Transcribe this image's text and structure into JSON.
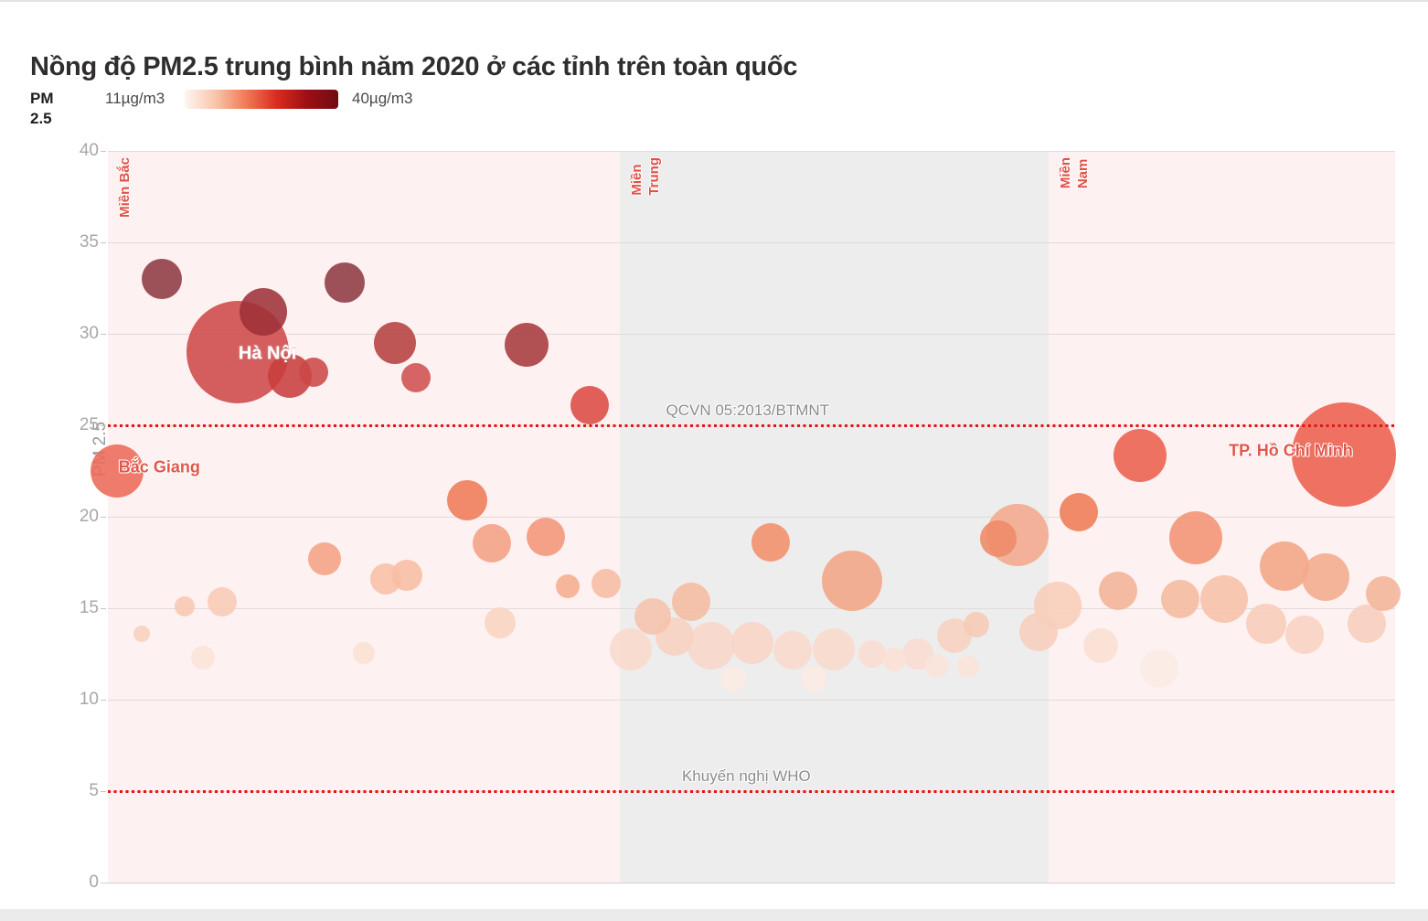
{
  "title": "Nồng độ PM2.5 trung bình năm 2020 ở các tỉnh trên toàn quốc",
  "legend": {
    "label": "PM 2.5",
    "min_label": "11µg/m3",
    "max_label": "40µg/m3",
    "gradient_stops": [
      "#fdf6f2",
      "#f9c5ab",
      "#f07a55",
      "#d92b20",
      "#9c0f14",
      "#700c13"
    ]
  },
  "colors": {
    "accent_red": "#e01812",
    "region_label": "#e05148",
    "pink_band": "#fdf1f1",
    "gray_band": "#ededed",
    "grid": "#e2dbdb",
    "tick_text": "#a9a6a6",
    "ref_text": "#8b8b8b",
    "title_text": "#302d2d",
    "footer_bar": "#ebebeb"
  },
  "chart_data": {
    "type": "bubble",
    "title": "Nồng độ PM2.5 trung bình năm 2020 ở các tỉnh trên toàn quốc",
    "ylabel": "PM 2.5",
    "unit": "µg/m3",
    "ylim": [
      0,
      40
    ],
    "yticks": [
      0,
      5,
      10,
      15,
      20,
      25,
      30,
      35,
      40
    ],
    "grid": true,
    "colorscale": {
      "min_value": 11,
      "max_value": 40
    },
    "regions": [
      {
        "label_lines": "Miền Bắc",
        "x0": 0.0,
        "x1": 0.398,
        "bg": "#fdf1f1"
      },
      {
        "label_lines": "Miền\nTrung",
        "x0": 0.398,
        "x1": 0.731,
        "bg": "#ededed"
      },
      {
        "label_lines": "Miền\nNam",
        "x0": 0.731,
        "x1": 1.0,
        "bg": "#fdf1f1"
      }
    ],
    "reference_lines": [
      {
        "label": "QCVN 05:2013/BTMNT",
        "value": 25,
        "label_x": 0.497
      },
      {
        "label": "Khuyến nghị WHO",
        "value": 5,
        "label_x": 0.496
      }
    ],
    "point_labels": [
      {
        "text": "Hà Nội",
        "x": 0.124,
        "pm25": 28.9,
        "style": "on-bubble"
      },
      {
        "text": "Bắc Giang",
        "x": 0.04,
        "pm25": 22.7,
        "style": "callout"
      },
      {
        "text": "TP. Hồ Chí Minh",
        "x": 0.919,
        "pm25": 23.6,
        "style": "callout"
      }
    ],
    "points": [
      {
        "region": "Miền Bắc",
        "x": 0.042,
        "pm25": 33.0,
        "r": 22,
        "color": "#8e3a43"
      },
      {
        "region": "Miền Bắc",
        "x": 0.184,
        "pm25": 32.8,
        "r": 22,
        "color": "#8e3a43"
      },
      {
        "region": "Miền Bắc",
        "x": 0.121,
        "pm25": 31.2,
        "r": 26,
        "color": "#9e3138"
      },
      {
        "region": "Miền Bắc",
        "name": "Hà Nội",
        "x": 0.101,
        "pm25": 29.0,
        "r": 56,
        "color": "#ce4949"
      },
      {
        "region": "Miền Bắc",
        "x": 0.141,
        "pm25": 27.7,
        "r": 24,
        "color": "#c83e3e"
      },
      {
        "region": "Miền Bắc",
        "x": 0.16,
        "pm25": 27.9,
        "r": 16,
        "color": "#cc4848"
      },
      {
        "region": "Miền Bắc",
        "x": 0.223,
        "pm25": 29.5,
        "r": 23,
        "color": "#b54040"
      },
      {
        "region": "Miền Bắc",
        "x": 0.239,
        "pm25": 27.6,
        "r": 16,
        "color": "#d15050"
      },
      {
        "region": "Miền Bắc",
        "x": 0.325,
        "pm25": 29.4,
        "r": 24,
        "color": "#a73a3c"
      },
      {
        "region": "Miền Bắc",
        "x": 0.374,
        "pm25": 26.1,
        "r": 21,
        "color": "#dc4a43"
      },
      {
        "region": "Miền Bắc",
        "name": "Bắc Giang",
        "x": 0.007,
        "pm25": 22.5,
        "r": 29,
        "color": "#ec6a58"
      },
      {
        "region": "Miền Bắc",
        "x": 0.279,
        "pm25": 20.9,
        "r": 22,
        "color": "#ef7b58"
      },
      {
        "region": "Miền Bắc",
        "x": 0.298,
        "pm25": 18.55,
        "r": 21,
        "color": "#f4a183"
      },
      {
        "region": "Miền Bắc",
        "x": 0.34,
        "pm25": 18.9,
        "r": 21,
        "color": "#f29577"
      },
      {
        "region": "Miền Bắc",
        "x": 0.168,
        "pm25": 17.7,
        "r": 18,
        "color": "#f5a285"
      },
      {
        "region": "Miền Bắc",
        "x": 0.216,
        "pm25": 16.6,
        "r": 17,
        "color": "#f8bfa6"
      },
      {
        "region": "Miền Bắc",
        "x": 0.232,
        "pm25": 16.8,
        "r": 17,
        "color": "#f8bda4"
      },
      {
        "region": "Miền Bắc",
        "x": 0.357,
        "pm25": 16.2,
        "r": 13,
        "color": "#f4ad90"
      },
      {
        "region": "Miền Bắc",
        "x": 0.387,
        "pm25": 16.35,
        "r": 16,
        "color": "#f7bca2"
      },
      {
        "region": "Miền Bắc",
        "x": 0.06,
        "pm25": 15.1,
        "r": 11,
        "color": "#f7c8b2"
      },
      {
        "region": "Miền Bắc",
        "x": 0.089,
        "pm25": 15.35,
        "r": 16,
        "color": "#f8cab5"
      },
      {
        "region": "Miền Bắc",
        "x": 0.305,
        "pm25": 14.2,
        "r": 17,
        "color": "#f9d4c2"
      },
      {
        "region": "Miền Bắc",
        "x": 0.026,
        "pm25": 13.6,
        "r": 9,
        "color": "#f8d0bd"
      },
      {
        "region": "Miền Bắc",
        "x": 0.074,
        "pm25": 12.3,
        "r": 13,
        "color": "#fce4d8"
      },
      {
        "region": "Miền Bắc",
        "x": 0.199,
        "pm25": 12.55,
        "r": 12,
        "color": "#fbe0d2"
      },
      {
        "region": "Miền Trung",
        "x": 0.515,
        "pm25": 18.6,
        "r": 21,
        "color": "#f28f6b"
      },
      {
        "region": "Miền Trung",
        "x": 0.578,
        "pm25": 16.5,
        "r": 33,
        "color": "#f2a585"
      },
      {
        "region": "Miền Trung",
        "x": 0.707,
        "pm25": 19.0,
        "r": 34,
        "color": "#f2a98c"
      },
      {
        "region": "Miền Trung",
        "x": 0.692,
        "pm25": 18.8,
        "r": 20,
        "color": "#ee8a66"
      },
      {
        "region": "Miền Trung",
        "x": 0.406,
        "pm25": 12.75,
        "r": 23,
        "color": "#f9dacc"
      },
      {
        "region": "Miền Trung",
        "x": 0.423,
        "pm25": 14.55,
        "r": 20,
        "color": "#f6c3ad"
      },
      {
        "region": "Miền Trung",
        "x": 0.44,
        "pm25": 13.45,
        "r": 21,
        "color": "#f8d1c0"
      },
      {
        "region": "Miền Trung",
        "x": 0.453,
        "pm25": 15.35,
        "r": 21,
        "color": "#f5bba1"
      },
      {
        "region": "Miền Trung",
        "x": 0.469,
        "pm25": 12.95,
        "r": 26,
        "color": "#f8d7c8"
      },
      {
        "region": "Miền Trung",
        "x": 0.486,
        "pm25": 11.15,
        "r": 14,
        "color": "#fcebe3"
      },
      {
        "region": "Miền Trung",
        "x": 0.501,
        "pm25": 13.1,
        "r": 23,
        "color": "#f8d5c5"
      },
      {
        "region": "Miền Trung",
        "x": 0.532,
        "pm25": 12.7,
        "r": 21,
        "color": "#f9dacc"
      },
      {
        "region": "Miền Trung",
        "x": 0.548,
        "pm25": 11.15,
        "r": 14,
        "color": "#fcebe3"
      },
      {
        "region": "Miền Trung",
        "x": 0.564,
        "pm25": 12.75,
        "r": 23,
        "color": "#f9dacc"
      },
      {
        "region": "Miền Trung",
        "x": 0.594,
        "pm25": 12.5,
        "r": 15,
        "color": "#f9dcd0"
      },
      {
        "region": "Miền Trung",
        "x": 0.611,
        "pm25": 12.2,
        "r": 13,
        "color": "#fae0d4"
      },
      {
        "region": "Miền Trung",
        "x": 0.629,
        "pm25": 12.5,
        "r": 17,
        "color": "#f9dcd0"
      },
      {
        "region": "Miền Trung",
        "x": 0.644,
        "pm25": 11.85,
        "r": 13,
        "color": "#fbe4da"
      },
      {
        "region": "Miền Trung",
        "x": 0.658,
        "pm25": 13.5,
        "r": 19,
        "color": "#f8d1c0"
      },
      {
        "region": "Miền Trung",
        "x": 0.675,
        "pm25": 14.1,
        "r": 14,
        "color": "#f7c9b5"
      },
      {
        "region": "Miền Trung",
        "x": 0.668,
        "pm25": 11.8,
        "r": 12,
        "color": "#fbe4da"
      },
      {
        "region": "Miền Trung",
        "x": 0.723,
        "pm25": 13.7,
        "r": 21,
        "color": "#f7cebc"
      },
      {
        "region": "Miền Nam",
        "x": 0.754,
        "pm25": 20.25,
        "r": 21,
        "color": "#ef7b55"
      },
      {
        "region": "Miền Nam",
        "x": 0.802,
        "pm25": 23.35,
        "r": 29,
        "color": "#ec604d"
      },
      {
        "region": "Miền Nam",
        "name": "TP. Hồ Chí Minh",
        "x": 0.96,
        "pm25": 23.4,
        "r": 57,
        "color": "#ec5f4c"
      },
      {
        "region": "Miền Nam",
        "x": 0.845,
        "pm25": 18.85,
        "r": 29,
        "color": "#f29374"
      },
      {
        "region": "Miền Nam",
        "x": 0.914,
        "pm25": 17.3,
        "r": 27,
        "color": "#f3a585"
      },
      {
        "region": "Miền Nam",
        "x": 0.946,
        "pm25": 16.7,
        "r": 26,
        "color": "#f3ab8d"
      },
      {
        "region": "Miền Nam",
        "x": 0.785,
        "pm25": 15.95,
        "r": 21,
        "color": "#f4b296"
      },
      {
        "region": "Miền Nam",
        "x": 0.833,
        "pm25": 15.5,
        "r": 21,
        "color": "#f5b99e"
      },
      {
        "region": "Miền Nam",
        "x": 0.867,
        "pm25": 15.5,
        "r": 26,
        "color": "#f6c0a8"
      },
      {
        "region": "Miền Nam",
        "x": 0.991,
        "pm25": 15.8,
        "r": 19,
        "color": "#f4b499"
      },
      {
        "region": "Miền Nam",
        "x": 0.738,
        "pm25": 15.15,
        "r": 26,
        "color": "#f8cdb8"
      },
      {
        "region": "Miền Nam",
        "x": 0.9,
        "pm25": 14.15,
        "r": 22,
        "color": "#f7ccba"
      },
      {
        "region": "Miền Nam",
        "x": 0.93,
        "pm25": 13.55,
        "r": 21,
        "color": "#f8d2c1"
      },
      {
        "region": "Miền Nam",
        "x": 0.978,
        "pm25": 14.15,
        "r": 21,
        "color": "#f7cdbb"
      },
      {
        "region": "Miền Nam",
        "x": 0.771,
        "pm25": 12.95,
        "r": 19,
        "color": "#fadfd3"
      },
      {
        "region": "Miền Nam",
        "x": 0.817,
        "pm25": 11.7,
        "r": 21,
        "color": "#fcebe4"
      }
    ]
  }
}
